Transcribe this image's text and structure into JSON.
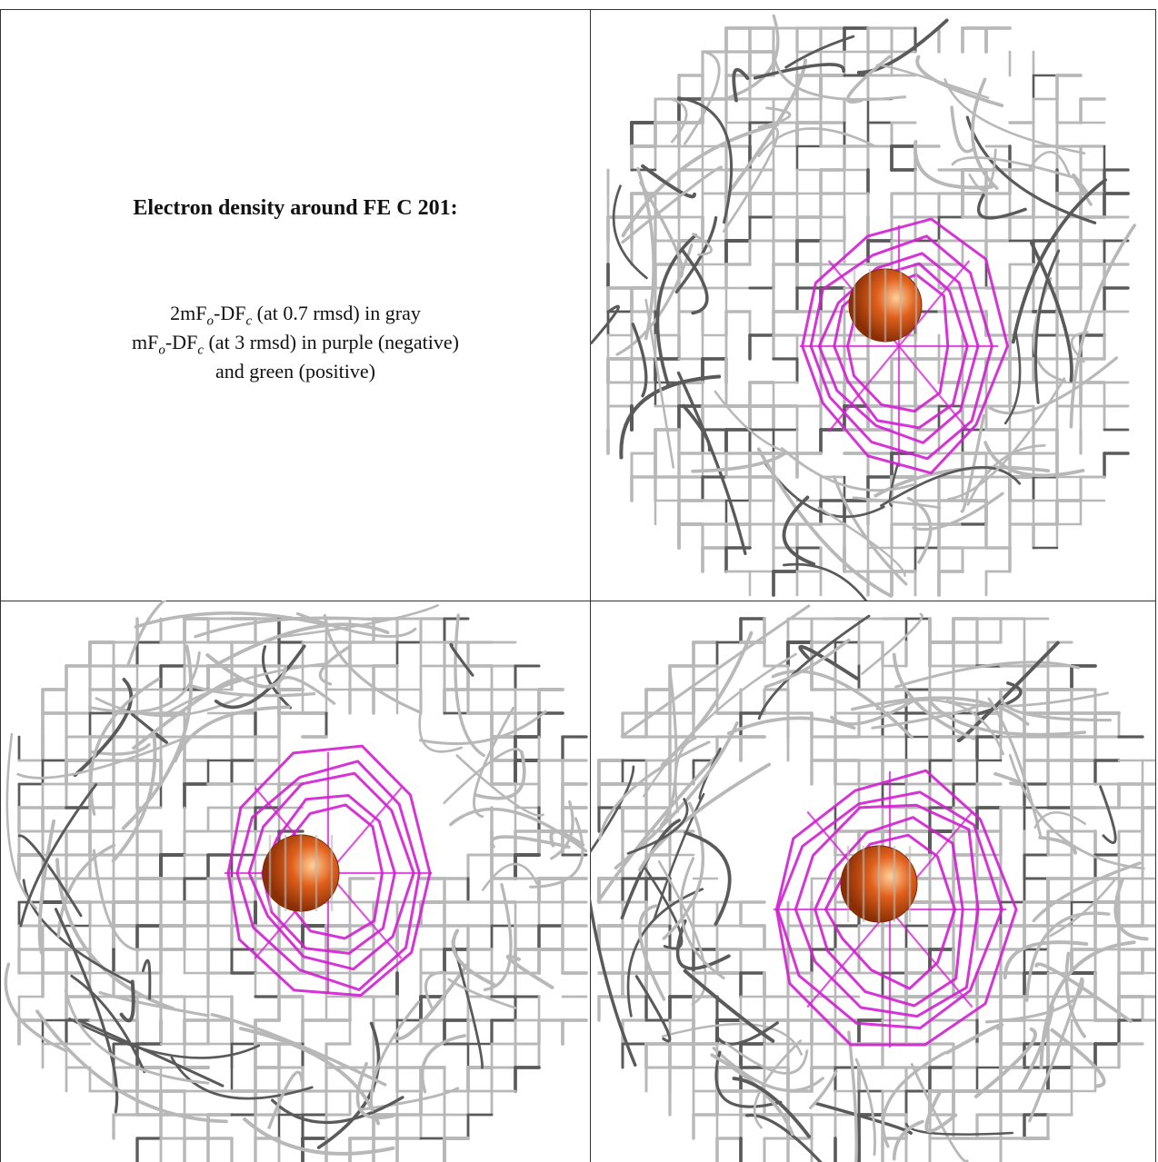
{
  "caption": {
    "title": "Electron density around FE C 201:",
    "line1": {
      "prefix": "2mF",
      "sub1": "o",
      "mid": "-DF",
      "sub2": "c",
      "suffix": " (at 0.7 rmsd) in gray"
    },
    "line2": {
      "prefix": "mF",
      "sub1": "o",
      "mid": "-DF",
      "sub2": "c",
      "suffix": " (at 3 rmsd) in purple (negative)"
    },
    "line3": "and green (positive)"
  },
  "colors": {
    "gray_mesh": "#b8b8b8",
    "dark_mesh": "#5a5a5a",
    "purple_mesh": "#d21fd2",
    "atom": "#e0601c"
  },
  "icons": {
    "atom": "sphere-icon"
  }
}
